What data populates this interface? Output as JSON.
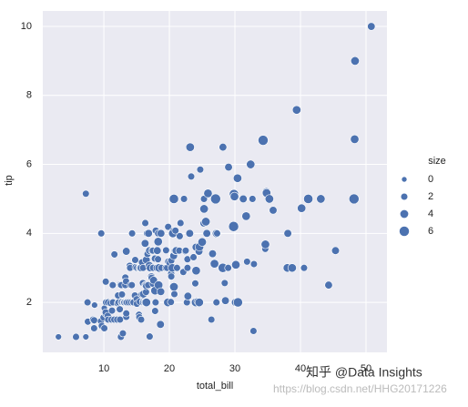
{
  "chart_data": {
    "type": "scatter",
    "xlabel": "total_bill",
    "ylabel": "tip",
    "xlim": [
      0.68,
      53.2
    ],
    "ylim": [
      0.55,
      10.45
    ],
    "xticks": [
      10,
      20,
      30,
      40,
      50
    ],
    "yticks": [
      2,
      4,
      6,
      8,
      10
    ],
    "grid": true,
    "color": "#4c72b0",
    "background": "#eaeaf2",
    "legend": {
      "title": "size",
      "position": "right",
      "sizes": [
        0,
        2,
        4,
        6
      ]
    },
    "x": [
      3.07,
      5.75,
      7.25,
      7.25,
      7.51,
      7.56,
      8.35,
      8.51,
      8.52,
      8.58,
      9.55,
      9.6,
      9.68,
      9.94,
      10.07,
      10.07,
      10.33,
      10.27,
      10.29,
      10.34,
      10.59,
      10.63,
      10.65,
      11.02,
      11.17,
      11.24,
      11.35,
      11.38,
      11.59,
      11.61,
      12.02,
      12.03,
      12.16,
      12.26,
      12.43,
      12.46,
      12.48,
      12.54,
      12.6,
      12.66,
      12.69,
      12.74,
      12.76,
      12.9,
      13,
      13.03,
      13.13,
      13.27,
      13.28,
      13.37,
      13.39,
      13.42,
      13.42,
      13.42,
      13.51,
      13.81,
      13.94,
      14,
      14.07,
      14.15,
      14.26,
      14.31,
      14.48,
      14.52,
      14.73,
      14.78,
      14.83,
      15.01,
      15.04,
      15.06,
      15.36,
      15.38,
      15.42,
      15.48,
      15.53,
      15.69,
      15.69,
      15.77,
      15.81,
      15.95,
      15.98,
      15.98,
      16,
      16.04,
      16.21,
      16.27,
      16.29,
      16.31,
      16.32,
      16.4,
      16.43,
      16.45,
      16.47,
      16.49,
      16.58,
      16.66,
      16.76,
      16.82,
      16.93,
      16.97,
      16.99,
      17.07,
      17.26,
      17.29,
      17.31,
      17.46,
      17.47,
      17.51,
      17.59,
      17.78,
      17.81,
      17.82,
      17.89,
      17.92,
      18.04,
      18.15,
      18.24,
      18.26,
      18.28,
      18.29,
      18.35,
      18.43,
      18.64,
      18.69,
      18.71,
      18.78,
      19.44,
      19.49,
      19.65,
      19.77,
      19.81,
      19.82,
      20.08,
      20.23,
      20.27,
      20.29,
      20.29,
      20.45,
      20.49,
      20.53,
      20.65,
      20.69,
      20.69,
      20.76,
      20.9,
      20.92,
      21.01,
      21.16,
      21.5,
      21.58,
      21.7,
      22.12,
      22.23,
      22.42,
      22.49,
      22.67,
      22.75,
      22.76,
      22.82,
      23.1,
      23.17,
      23.33,
      23.68,
      23.95,
      24.01,
      24.06,
      24.08,
      24.27,
      24.52,
      24.55,
      24.59,
      24.71,
      25,
      25.21,
      25.28,
      25.29,
      25.56,
      25.71,
      25.89,
      26.41,
      26.59,
      26.86,
      26.88,
      27.05,
      27.18,
      27.2,
      27.28,
      28.15,
      28.17,
      28.44,
      28.55,
      28.97,
      29.03,
      29.8,
      29.85,
      29.93,
      30.06,
      30.14,
      30.4,
      30.46,
      31.27,
      31.71,
      31.85,
      32.4,
      32.68,
      32.83,
      32.9,
      34.3,
      34.63,
      34.65,
      34.81,
      34.83,
      35.26,
      35.83,
      38.01,
      38.07,
      38.73,
      39.42,
      40.17,
      40.55,
      41.19,
      43.11,
      44.3,
      45.35,
      48.17,
      48.27,
      48.33,
      50.81
    ],
    "y": [
      1,
      1,
      1,
      5.15,
      2,
      1.44,
      1.5,
      1.25,
      1.48,
      1.92,
      1.45,
      4,
      1.32,
      1.56,
      1.83,
      1.25,
      1.67,
      1.71,
      2.6,
      2,
      1.61,
      2,
      1.5,
      1.98,
      1.5,
      1.76,
      2.5,
      2,
      1.5,
      3.39,
      1.97,
      1.5,
      2.2,
      2,
      1.8,
      1.5,
      2.52,
      2.5,
      1,
      2.5,
      2,
      2.01,
      2.23,
      1.1,
      2,
      2,
      2,
      2.5,
      2.72,
      2,
      2.61,
      3.48,
      1.58,
      1.68,
      2,
      2,
      3.06,
      3,
      2.5,
      2,
      2.5,
      4,
      2,
      2,
      2.2,
      3.23,
      3.02,
      2.09,
      1.96,
      3,
      1.64,
      3,
      1.57,
      2.02,
      3,
      1.5,
      3,
      2.23,
      3.16,
      2.56,
      2.03,
      3,
      2,
      2.24,
      2,
      2.5,
      3.71,
      2,
      4.3,
      2.5,
      2.3,
      2.47,
      3.23,
      2,
      4,
      3.4,
      2.5,
      4,
      3.07,
      3.5,
      1.01,
      3,
      2.74,
      2.71,
      3.5,
      2.54,
      3.5,
      3,
      2.64,
      3.27,
      2.34,
      1.75,
      2,
      4.08,
      3,
      3.5,
      3.76,
      3.25,
      4,
      3.76,
      2.5,
      3,
      1.36,
      2.31,
      4,
      3,
      3,
      3.51,
      3,
      2,
      4.19,
      3.18,
      3.15,
      2.01,
      2.83,
      2.75,
      3.21,
      3,
      4.06,
      4,
      3.35,
      2.45,
      5,
      2.24,
      3.5,
      4.08,
      3.5,
      3,
      3.5,
      3.92,
      4.3,
      2.88,
      5,
      3.48,
      3.5,
      2,
      3.25,
      3,
      2.18,
      4,
      6.5,
      5.65,
      3.31,
      2.55,
      2,
      3.6,
      2.92,
      2.03,
      3.48,
      2,
      3.61,
      5.85,
      3.75,
      4.29,
      5,
      4.71,
      4.34,
      4,
      5.16,
      1.5,
      3.41,
      3.14,
      3.12,
      5,
      2,
      4,
      4,
      3,
      6.5,
      2.56,
      2.05,
      3,
      5.92,
      4.2,
      5.14,
      5.07,
      2,
      3.09,
      5.6,
      2,
      5,
      4.5,
      3.18,
      6,
      5,
      1.17,
      3.11,
      6.7,
      3.55,
      3.68,
      5.2,
      5.17,
      5,
      4.67,
      3,
      4,
      3,
      7.58,
      4.73,
      3,
      5,
      5,
      2.5,
      3.5,
      5,
      6.73,
      9,
      10
    ],
    "size": [
      1,
      2,
      1,
      2,
      2,
      2,
      2,
      2,
      2,
      1,
      2,
      2,
      2,
      2,
      1,
      2,
      3,
      2,
      2,
      2,
      2,
      2,
      2,
      2,
      2,
      2,
      2,
      2,
      2,
      2,
      1,
      2,
      2,
      2,
      2,
      2,
      2,
      2,
      2,
      2,
      2,
      2,
      2,
      2,
      2,
      2,
      2,
      2,
      2,
      2,
      2,
      3,
      2,
      2,
      2,
      2,
      2,
      2,
      2,
      2,
      2,
      2,
      2,
      2,
      2,
      2,
      2,
      2,
      2,
      2,
      2,
      2,
      2,
      2,
      2,
      2,
      3,
      2,
      2,
      2,
      2,
      2,
      2,
      3,
      2,
      2,
      3,
      3,
      2,
      2,
      2,
      2,
      3,
      4,
      2,
      2,
      2,
      3,
      3,
      3,
      2,
      3,
      3,
      2,
      2,
      2,
      2,
      2,
      3,
      2,
      4,
      2,
      2,
      2,
      2,
      3,
      2,
      2,
      2,
      4,
      4,
      4,
      3,
      3,
      3,
      2,
      2,
      2,
      2,
      4,
      2,
      2,
      3,
      2,
      2,
      2,
      2,
      4,
      2,
      4,
      3,
      4,
      5,
      2,
      3,
      2,
      3,
      2,
      2,
      2,
      2,
      2,
      2,
      2,
      2,
      2,
      2,
      2,
      3,
      3,
      4,
      2,
      2,
      2,
      4,
      3,
      4,
      2,
      3,
      4,
      4,
      2,
      4,
      2,
      2,
      4,
      4,
      3,
      4,
      2,
      3,
      2,
      4,
      6,
      2,
      4,
      2,
      5,
      3,
      2,
      3,
      2,
      3,
      6,
      5,
      4,
      3,
      4,
      4,
      5,
      3,
      4,
      2,
      4,
      2,
      2,
      2,
      6,
      2,
      4,
      4,
      4,
      4,
      3,
      4,
      3,
      4,
      4,
      4,
      2,
      5,
      4,
      3,
      3,
      6,
      4,
      4,
      3
    ]
  },
  "watermark": {
    "text": "知乎 @Data Insights",
    "url": "https://blog.csdn.net/HHG20171226"
  }
}
